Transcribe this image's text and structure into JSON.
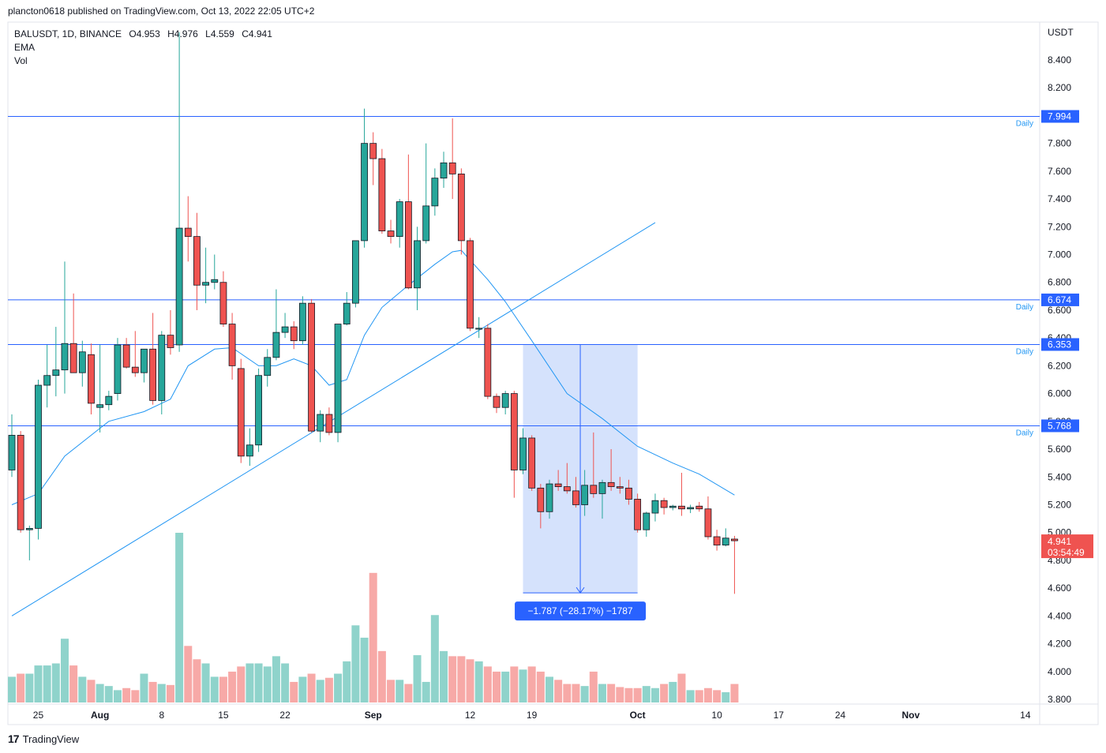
{
  "header": {
    "text": "plancton0618 published on TradingView.com, Oct 13, 2022 22:05 UTC+2"
  },
  "legend": {
    "symbol": "BALUSDT, 1D, BINANCE",
    "ohlc": {
      "open": "O4.953",
      "high": "H4.976",
      "low": "L4.559",
      "close": "C4.941"
    },
    "indicators": [
      "EMA",
      "Vol"
    ]
  },
  "footer": {
    "brand": "TradingView"
  },
  "chart_data": {
    "type": "candlestick",
    "currency_label": "USDT",
    "y_ticks": [
      3.8,
      4.0,
      4.2,
      4.4,
      4.6,
      4.8,
      5.0,
      5.2,
      5.4,
      5.6,
      5.8,
      6.0,
      6.2,
      6.4,
      6.6,
      6.8,
      7.0,
      7.2,
      7.4,
      7.6,
      7.8,
      8.0,
      8.2,
      8.4
    ],
    "ylim": [
      3.8,
      8.7
    ],
    "x_first_date": "2022-07-22",
    "x_last_date": "2022-11-15",
    "x_ticks": [
      {
        "label": "25",
        "date": "2022-07-25",
        "bold": false
      },
      {
        "label": "Aug",
        "date": "2022-08-01",
        "bold": true
      },
      {
        "label": "8",
        "date": "2022-08-08",
        "bold": false
      },
      {
        "label": "15",
        "date": "2022-08-15",
        "bold": false
      },
      {
        "label": "22",
        "date": "2022-08-22",
        "bold": false
      },
      {
        "label": "Sep",
        "date": "2022-09-01",
        "bold": true
      },
      {
        "label": "12",
        "date": "2022-09-12",
        "bold": false
      },
      {
        "label": "19",
        "date": "2022-09-19",
        "bold": false
      },
      {
        "label": "Oct",
        "date": "2022-10-01",
        "bold": true
      },
      {
        "label": "10",
        "date": "2022-10-10",
        "bold": false
      },
      {
        "label": "17",
        "date": "2022-10-17",
        "bold": false
      },
      {
        "label": "24",
        "date": "2022-10-24",
        "bold": false
      },
      {
        "label": "Nov",
        "date": "2022-11-01",
        "bold": true
      },
      {
        "label": "14",
        "date": "2022-11-14",
        "bold": false
      }
    ],
    "candles": [
      {
        "date": "2022-07-22",
        "o": 5.45,
        "h": 5.85,
        "l": 5.4,
        "c": 5.7,
        "v": 0.25
      },
      {
        "date": "2022-07-23",
        "o": 5.7,
        "h": 5.73,
        "l": 5.0,
        "c": 5.02,
        "v": 0.28
      },
      {
        "date": "2022-07-24",
        "o": 5.02,
        "h": 5.05,
        "l": 4.8,
        "c": 5.03,
        "v": 0.28
      },
      {
        "date": "2022-07-25",
        "o": 5.03,
        "h": 6.1,
        "l": 4.95,
        "c": 6.06,
        "v": 0.36
      },
      {
        "date": "2022-07-26",
        "o": 6.06,
        "h": 6.35,
        "l": 5.9,
        "c": 6.13,
        "v": 0.36
      },
      {
        "date": "2022-07-27",
        "o": 6.13,
        "h": 6.48,
        "l": 5.98,
        "c": 6.17,
        "v": 0.38
      },
      {
        "date": "2022-07-28",
        "o": 6.17,
        "h": 6.95,
        "l": 6.0,
        "c": 6.36,
        "v": 0.62
      },
      {
        "date": "2022-07-29",
        "o": 6.36,
        "h": 6.72,
        "l": 6.15,
        "c": 6.15,
        "v": 0.36
      },
      {
        "date": "2022-07-30",
        "o": 6.15,
        "h": 6.38,
        "l": 6.05,
        "c": 6.3,
        "v": 0.25
      },
      {
        "date": "2022-07-31",
        "o": 6.28,
        "h": 6.36,
        "l": 5.85,
        "c": 5.93,
        "v": 0.22
      },
      {
        "date": "2022-08-01",
        "o": 5.9,
        "h": 6.35,
        "l": 5.72,
        "c": 5.92,
        "v": 0.18
      },
      {
        "date": "2022-08-02",
        "o": 5.92,
        "h": 6.02,
        "l": 5.88,
        "c": 5.98,
        "v": 0.16
      },
      {
        "date": "2022-08-03",
        "o": 6.0,
        "h": 6.4,
        "l": 5.95,
        "c": 6.35,
        "v": 0.12
      },
      {
        "date": "2022-08-04",
        "o": 6.35,
        "h": 6.4,
        "l": 6.18,
        "c": 6.19,
        "v": 0.14
      },
      {
        "date": "2022-08-05",
        "o": 6.19,
        "h": 6.45,
        "l": 6.12,
        "c": 6.15,
        "v": 0.12
      },
      {
        "date": "2022-08-06",
        "o": 6.15,
        "h": 6.32,
        "l": 6.08,
        "c": 6.32,
        "v": 0.28
      },
      {
        "date": "2022-08-07",
        "o": 6.32,
        "h": 6.58,
        "l": 5.92,
        "c": 5.95,
        "v": 0.2
      },
      {
        "date": "2022-08-08",
        "o": 5.95,
        "h": 6.45,
        "l": 5.85,
        "c": 6.42,
        "v": 0.18
      },
      {
        "date": "2022-08-09",
        "o": 6.42,
        "h": 6.6,
        "l": 6.28,
        "c": 6.33,
        "v": 0.17
      },
      {
        "date": "2022-08-10",
        "o": 6.35,
        "h": 8.6,
        "l": 6.3,
        "c": 7.19,
        "v": 1.65
      },
      {
        "date": "2022-08-11",
        "o": 7.19,
        "h": 7.42,
        "l": 6.95,
        "c": 7.13,
        "v": 0.55
      },
      {
        "date": "2022-08-12",
        "o": 7.13,
        "h": 7.3,
        "l": 6.6,
        "c": 6.78,
        "v": 0.42
      },
      {
        "date": "2022-08-13",
        "o": 6.78,
        "h": 7.05,
        "l": 6.65,
        "c": 6.8,
        "v": 0.38
      },
      {
        "date": "2022-08-14",
        "o": 6.8,
        "h": 7.0,
        "l": 6.75,
        "c": 6.82,
        "v": 0.25
      },
      {
        "date": "2022-08-15",
        "o": 6.8,
        "h": 6.88,
        "l": 6.48,
        "c": 6.5,
        "v": 0.25
      },
      {
        "date": "2022-08-16",
        "o": 6.5,
        "h": 6.58,
        "l": 6.1,
        "c": 6.2,
        "v": 0.3
      },
      {
        "date": "2022-08-17",
        "o": 6.18,
        "h": 6.25,
        "l": 5.5,
        "c": 5.55,
        "v": 0.35
      },
      {
        "date": "2022-08-18",
        "o": 5.55,
        "h": 5.75,
        "l": 5.48,
        "c": 5.63,
        "v": 0.38
      },
      {
        "date": "2022-08-19",
        "o": 5.63,
        "h": 6.18,
        "l": 5.58,
        "c": 6.13,
        "v": 0.38
      },
      {
        "date": "2022-08-20",
        "o": 6.13,
        "h": 6.32,
        "l": 6.05,
        "c": 6.26,
        "v": 0.35
      },
      {
        "date": "2022-08-21",
        "o": 6.26,
        "h": 6.75,
        "l": 6.24,
        "c": 6.44,
        "v": 0.45
      },
      {
        "date": "2022-08-22",
        "o": 6.44,
        "h": 6.58,
        "l": 6.4,
        "c": 6.48,
        "v": 0.38
      },
      {
        "date": "2022-08-23",
        "o": 6.48,
        "h": 6.52,
        "l": 6.32,
        "c": 6.38,
        "v": 0.2
      },
      {
        "date": "2022-08-24",
        "o": 6.38,
        "h": 6.7,
        "l": 6.35,
        "c": 6.65,
        "v": 0.25
      },
      {
        "date": "2022-08-25",
        "o": 6.65,
        "h": 6.68,
        "l": 5.72,
        "c": 5.73,
        "v": 0.28
      },
      {
        "date": "2022-08-26",
        "o": 5.73,
        "h": 5.88,
        "l": 5.65,
        "c": 5.85,
        "v": 0.22
      },
      {
        "date": "2022-08-27",
        "o": 5.85,
        "h": 5.9,
        "l": 5.7,
        "c": 5.72,
        "v": 0.24
      },
      {
        "date": "2022-08-28",
        "o": 5.72,
        "h": 6.5,
        "l": 5.65,
        "c": 6.5,
        "v": 0.28
      },
      {
        "date": "2022-08-29",
        "o": 6.5,
        "h": 6.73,
        "l": 6.49,
        "c": 6.65,
        "v": 0.4
      },
      {
        "date": "2022-08-30",
        "o": 6.65,
        "h": 7.1,
        "l": 6.62,
        "c": 7.1,
        "v": 0.75
      },
      {
        "date": "2022-08-31",
        "o": 7.1,
        "h": 8.05,
        "l": 7.05,
        "c": 7.8,
        "v": 0.63
      },
      {
        "date": "2022-09-01",
        "o": 7.8,
        "h": 7.88,
        "l": 7.5,
        "c": 7.69,
        "v": 1.26
      },
      {
        "date": "2022-09-02",
        "o": 7.69,
        "h": 7.76,
        "l": 7.15,
        "c": 7.17,
        "v": 0.5
      },
      {
        "date": "2022-09-03",
        "o": 7.17,
        "h": 7.25,
        "l": 7.08,
        "c": 7.13,
        "v": 0.22
      },
      {
        "date": "2022-09-04",
        "o": 7.13,
        "h": 7.4,
        "l": 7.05,
        "c": 7.38,
        "v": 0.22
      },
      {
        "date": "2022-09-05",
        "o": 7.38,
        "h": 7.72,
        "l": 6.75,
        "c": 6.76,
        "v": 0.18
      },
      {
        "date": "2022-09-06",
        "o": 6.76,
        "h": 7.2,
        "l": 6.6,
        "c": 7.1,
        "v": 0.46
      },
      {
        "date": "2022-09-07",
        "o": 7.1,
        "h": 7.8,
        "l": 7.08,
        "c": 7.35,
        "v": 0.2
      },
      {
        "date": "2022-09-08",
        "o": 7.35,
        "h": 7.62,
        "l": 7.28,
        "c": 7.55,
        "v": 0.85
      },
      {
        "date": "2022-09-09",
        "o": 7.55,
        "h": 7.74,
        "l": 7.48,
        "c": 7.66,
        "v": 0.5
      },
      {
        "date": "2022-09-10",
        "o": 7.66,
        "h": 7.98,
        "l": 7.4,
        "c": 7.58,
        "v": 0.45
      },
      {
        "date": "2022-09-11",
        "o": 7.58,
        "h": 7.62,
        "l": 7.0,
        "c": 7.1,
        "v": 0.45
      },
      {
        "date": "2022-09-12",
        "o": 7.1,
        "h": 7.12,
        "l": 6.45,
        "c": 6.47,
        "v": 0.42
      },
      {
        "date": "2022-09-13",
        "o": 6.47,
        "h": 6.55,
        "l": 6.4,
        "c": 6.47,
        "v": 0.4
      },
      {
        "date": "2022-09-14",
        "o": 6.47,
        "h": 6.5,
        "l": 5.96,
        "c": 5.98,
        "v": 0.35
      },
      {
        "date": "2022-09-15",
        "o": 5.98,
        "h": 6.0,
        "l": 5.86,
        "c": 5.9,
        "v": 0.3
      },
      {
        "date": "2022-09-16",
        "o": 5.9,
        "h": 6.02,
        "l": 5.85,
        "c": 6.0,
        "v": 0.3
      },
      {
        "date": "2022-09-17",
        "o": 6.0,
        "h": 6.02,
        "l": 5.25,
        "c": 5.45,
        "v": 0.35
      },
      {
        "date": "2022-09-18",
        "o": 5.45,
        "h": 5.75,
        "l": 5.42,
        "c": 5.68,
        "v": 0.32
      },
      {
        "date": "2022-09-19",
        "o": 5.68,
        "h": 5.7,
        "l": 5.3,
        "c": 5.32,
        "v": 0.35
      },
      {
        "date": "2022-09-20",
        "o": 5.32,
        "h": 5.35,
        "l": 5.03,
        "c": 5.15,
        "v": 0.3
      },
      {
        "date": "2022-09-21",
        "o": 5.15,
        "h": 5.38,
        "l": 5.1,
        "c": 5.35,
        "v": 0.25
      },
      {
        "date": "2022-09-22",
        "o": 5.35,
        "h": 5.45,
        "l": 5.3,
        "c": 5.33,
        "v": 0.22
      },
      {
        "date": "2022-09-23",
        "o": 5.33,
        "h": 5.5,
        "l": 5.28,
        "c": 5.3,
        "v": 0.18
      },
      {
        "date": "2022-09-24",
        "o": 5.3,
        "h": 5.4,
        "l": 5.18,
        "c": 5.2,
        "v": 0.18
      },
      {
        "date": "2022-09-25",
        "o": 5.2,
        "h": 5.45,
        "l": 5.12,
        "c": 5.34,
        "v": 0.16
      },
      {
        "date": "2022-09-26",
        "o": 5.34,
        "h": 5.72,
        "l": 5.25,
        "c": 5.28,
        "v": 0.3
      },
      {
        "date": "2022-09-27",
        "o": 5.28,
        "h": 5.38,
        "l": 5.1,
        "c": 5.36,
        "v": 0.18
      },
      {
        "date": "2022-09-28",
        "o": 5.36,
        "h": 5.6,
        "l": 5.3,
        "c": 5.33,
        "v": 0.18
      },
      {
        "date": "2022-09-29",
        "o": 5.33,
        "h": 5.4,
        "l": 5.28,
        "c": 5.32,
        "v": 0.15
      },
      {
        "date": "2022-09-30",
        "o": 5.32,
        "h": 5.38,
        "l": 5.2,
        "c": 5.24,
        "v": 0.14
      },
      {
        "date": "2022-10-01",
        "o": 5.24,
        "h": 5.28,
        "l": 5.0,
        "c": 5.02,
        "v": 0.14
      },
      {
        "date": "2022-10-02",
        "o": 5.02,
        "h": 5.15,
        "l": 4.97,
        "c": 5.14,
        "v": 0.16
      },
      {
        "date": "2022-10-03",
        "o": 5.14,
        "h": 5.28,
        "l": 5.08,
        "c": 5.23,
        "v": 0.14
      },
      {
        "date": "2022-10-04",
        "o": 5.23,
        "h": 5.25,
        "l": 5.13,
        "c": 5.18,
        "v": 0.18
      },
      {
        "date": "2022-10-05",
        "o": 5.18,
        "h": 5.2,
        "l": 5.16,
        "c": 5.19,
        "v": 0.2
      },
      {
        "date": "2022-10-06",
        "o": 5.19,
        "h": 5.43,
        "l": 5.12,
        "c": 5.17,
        "v": 0.28
      },
      {
        "date": "2022-10-07",
        "o": 5.17,
        "h": 5.2,
        "l": 5.14,
        "c": 5.18,
        "v": 0.12
      },
      {
        "date": "2022-10-08",
        "o": 5.19,
        "h": 5.22,
        "l": 5.15,
        "c": 5.17,
        "v": 0.12
      },
      {
        "date": "2022-10-09",
        "o": 5.17,
        "h": 5.26,
        "l": 4.95,
        "c": 4.97,
        "v": 0.14
      },
      {
        "date": "2022-10-10",
        "o": 4.97,
        "h": 5.02,
        "l": 4.87,
        "c": 4.91,
        "v": 0.12
      },
      {
        "date": "2022-10-11",
        "o": 4.91,
        "h": 5.03,
        "l": 4.9,
        "c": 4.96,
        "v": 0.1
      },
      {
        "date": "2022-10-12",
        "o": 4.953,
        "h": 4.976,
        "l": 4.559,
        "c": 4.941,
        "v": 0.18
      }
    ],
    "ema": [
      {
        "date": "2022-07-22",
        "value": 5.2
      },
      {
        "date": "2022-07-25",
        "value": 5.28
      },
      {
        "date": "2022-07-28",
        "value": 5.55
      },
      {
        "date": "2022-08-02",
        "value": 5.8
      },
      {
        "date": "2022-08-06",
        "value": 5.87
      },
      {
        "date": "2022-08-09",
        "value": 5.96
      },
      {
        "date": "2022-08-11",
        "value": 6.2
      },
      {
        "date": "2022-08-14",
        "value": 6.32
      },
      {
        "date": "2022-08-16",
        "value": 6.33
      },
      {
        "date": "2022-08-19",
        "value": 6.2
      },
      {
        "date": "2022-08-21",
        "value": 6.2
      },
      {
        "date": "2022-08-23",
        "value": 6.25
      },
      {
        "date": "2022-08-25",
        "value": 6.2
      },
      {
        "date": "2022-08-27",
        "value": 6.06
      },
      {
        "date": "2022-08-29",
        "value": 6.1
      },
      {
        "date": "2022-08-31",
        "value": 6.42
      },
      {
        "date": "2022-09-02",
        "value": 6.62
      },
      {
        "date": "2022-09-05",
        "value": 6.78
      },
      {
        "date": "2022-09-08",
        "value": 6.93
      },
      {
        "date": "2022-09-10",
        "value": 7.02
      },
      {
        "date": "2022-09-11",
        "value": 7.03
      },
      {
        "date": "2022-09-12",
        "value": 6.96
      },
      {
        "date": "2022-09-14",
        "value": 6.82
      },
      {
        "date": "2022-09-16",
        "value": 6.66
      },
      {
        "date": "2022-09-19",
        "value": 6.38
      },
      {
        "date": "2022-09-23",
        "value": 6.0
      },
      {
        "date": "2022-09-27",
        "value": 5.82
      },
      {
        "date": "2022-10-01",
        "value": 5.62
      },
      {
        "date": "2022-10-05",
        "value": 5.5
      },
      {
        "date": "2022-10-08",
        "value": 5.42
      },
      {
        "date": "2022-10-12",
        "value": 5.27
      }
    ],
    "horizontal_levels": [
      {
        "value": 7.994,
        "label": "7.994",
        "tag": "Daily"
      },
      {
        "value": 6.674,
        "label": "6.674",
        "tag": "Daily"
      },
      {
        "value": 6.353,
        "label": "6.353",
        "tag": "Daily"
      },
      {
        "value": 5.768,
        "label": "5.768",
        "tag": "Daily"
      }
    ],
    "trendline": {
      "from": {
        "date": "2022-07-22",
        "value": 4.4
      },
      "to": {
        "date": "2022-10-03",
        "value": 7.23
      }
    },
    "measure": {
      "start_date": "2022-09-18",
      "end_date": "2022-10-01",
      "from_value": 6.353,
      "to_value": 4.566,
      "label": "−1.787 (−28.17%) −1787"
    },
    "last_price": {
      "value": 4.941,
      "label": "4.941",
      "countdown": "03:54:49"
    },
    "colors": {
      "up": "#26a69a",
      "down": "#ef5350",
      "vol_up": "#8fd3cb",
      "vol_down": "#f7a9a7",
      "ema": "#2196f3",
      "level": "#2962ff",
      "measure_fill": "#c7d8fb",
      "measure_label_bg": "#2962ff"
    }
  }
}
